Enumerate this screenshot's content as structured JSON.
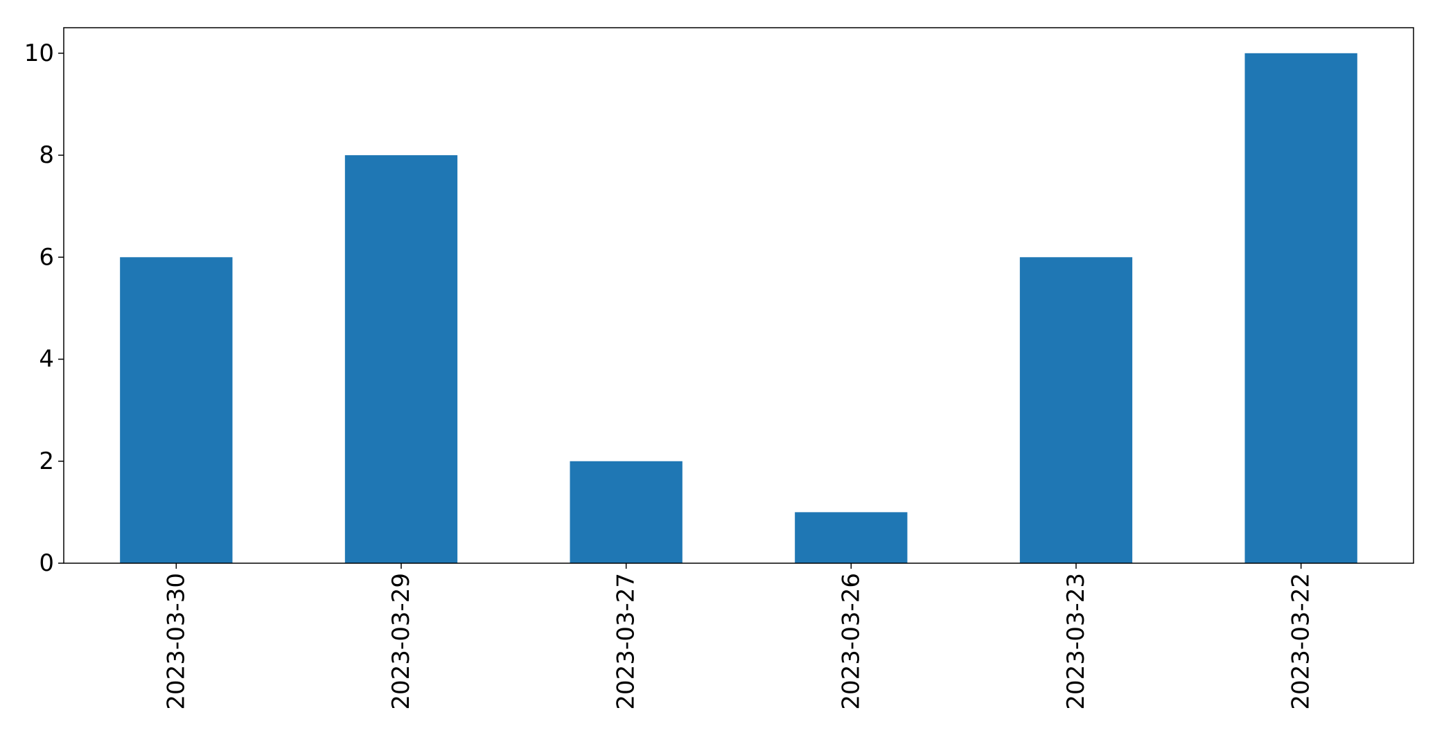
{
  "chart_data": {
    "type": "bar",
    "categories": [
      "2023-03-30",
      "2023-03-29",
      "2023-03-27",
      "2023-03-26",
      "2023-03-23",
      "2023-03-22"
    ],
    "values": [
      6,
      8,
      2,
      1,
      6,
      10
    ],
    "title": "",
    "xlabel": "",
    "ylabel": "",
    "ylim": [
      0,
      10.5
    ],
    "yticks": [
      0,
      2,
      4,
      6,
      8,
      10
    ],
    "ytick_labels": [
      "0",
      "2",
      "4",
      "6",
      "8",
      "10"
    ],
    "grid": false,
    "legend": "none",
    "colors": {
      "bar": "#1f77b4",
      "axis": "#000000",
      "background": "#ffffff"
    }
  }
}
